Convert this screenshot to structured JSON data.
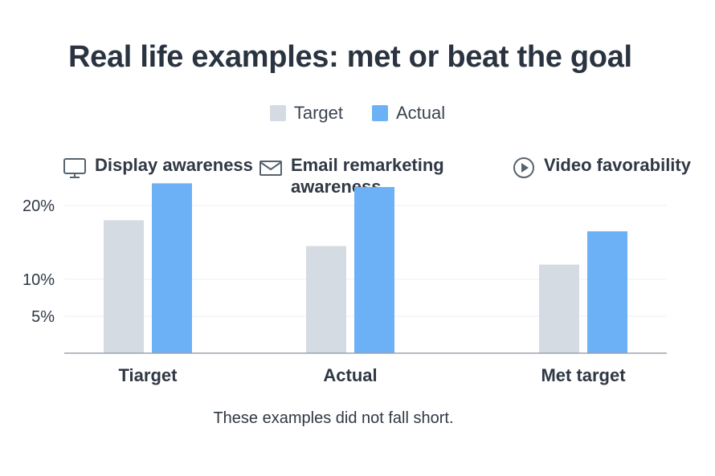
{
  "title": "Real life examples: met or beat the goal",
  "footer": "These examples did not fall short.",
  "colors": {
    "target": "#d5dbe2",
    "actual": "#6cb1f5",
    "axis": "#9aa3ad",
    "grid": "#eceff2"
  },
  "groups": [
    {
      "icon": "monitor-icon",
      "label": "Display awareness"
    },
    {
      "icon": "envelope-icon",
      "label": "Email remarketing awareness"
    },
    {
      "icon": "play-circle-icon",
      "label": "Video favorability"
    }
  ],
  "chart_data": {
    "type": "bar",
    "title": "Real life examples: met or beat the goal",
    "categories": [
      "Tiarget",
      "Actual",
      "Met target"
    ],
    "series": [
      {
        "name": "Target",
        "values": [
          18,
          14.5,
          12
        ]
      },
      {
        "name": "Actual",
        "values": [
          23,
          22.5,
          16.5
        ]
      }
    ],
    "y_ticks": [
      {
        "value": 5,
        "label": "5%"
      },
      {
        "value": 10,
        "label": "10%"
      },
      {
        "value": 20,
        "label": "20%"
      }
    ],
    "ylim": [
      0,
      30
    ],
    "legend": "top-center",
    "grid": true
  }
}
